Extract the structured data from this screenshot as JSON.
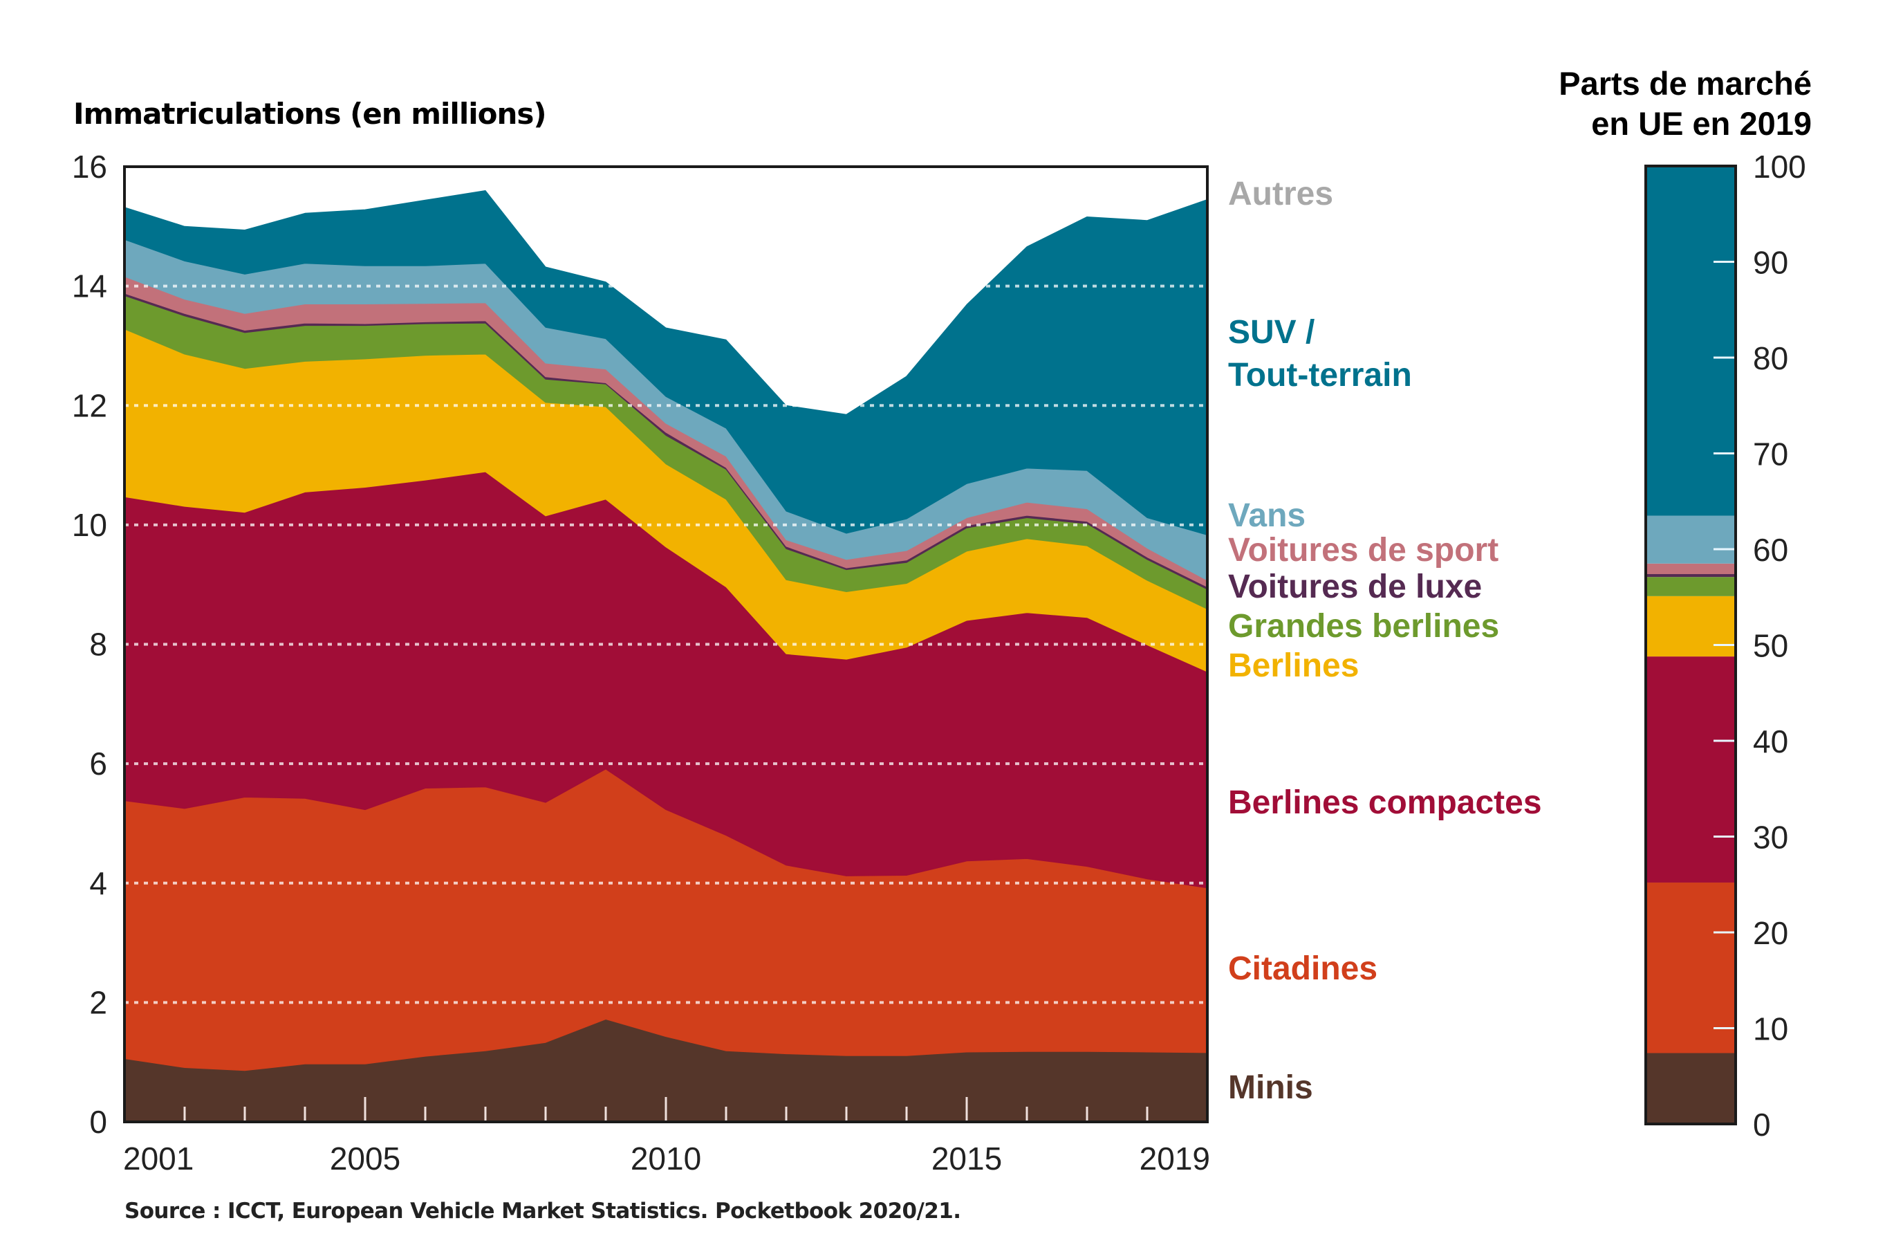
{
  "chart_data": {
    "type": "area",
    "stacked": true,
    "title": "",
    "ylabel": "Immatriculations (en millions)",
    "xlabel": "",
    "ylim": [
      0,
      16
    ],
    "yticks": [
      0,
      2,
      4,
      6,
      8,
      10,
      12,
      14,
      16
    ],
    "xlim": [
      2001,
      2019
    ],
    "x": [
      2001,
      2002,
      2003,
      2004,
      2005,
      2006,
      2007,
      2008,
      2009,
      2010,
      2011,
      2012,
      2013,
      2014,
      2015,
      2016,
      2017,
      2018,
      2019
    ],
    "xtick_labels": [
      "2001",
      "2005",
      "2010",
      "2015",
      "2019"
    ],
    "grid": "horizontal dotted",
    "legend_placement": "right (labels next to layers)",
    "series": [
      {
        "name": "Minis",
        "color": "#55362a",
        "values": [
          1.06,
          0.91,
          0.86,
          0.97,
          0.97,
          1.1,
          1.19,
          1.33,
          1.72,
          1.43,
          1.19,
          1.14,
          1.11,
          1.11,
          1.17,
          1.18,
          1.18,
          1.17,
          1.16
        ]
      },
      {
        "name": "Citadines",
        "color": "#d13f1b",
        "values": [
          4.32,
          4.34,
          4.58,
          4.45,
          4.26,
          4.49,
          4.42,
          4.02,
          4.19,
          3.8,
          3.61,
          3.16,
          3.01,
          3.02,
          3.2,
          3.23,
          3.1,
          2.9,
          2.76
        ]
      },
      {
        "name": "Berlines compactes",
        "color": "#a10d37",
        "values": [
          5.09,
          5.06,
          4.77,
          5.13,
          5.4,
          5.16,
          5.28,
          4.8,
          4.52,
          4.4,
          4.16,
          3.54,
          3.63,
          3.82,
          4.03,
          4.12,
          4.17,
          3.92,
          3.62
        ]
      },
      {
        "name": "Berlines",
        "color": "#f2b200",
        "values": [
          2.81,
          2.55,
          2.41,
          2.19,
          2.15,
          2.09,
          1.97,
          1.9,
          1.55,
          1.39,
          1.47,
          1.24,
          1.13,
          1.07,
          1.16,
          1.24,
          1.2,
          1.08,
          1.05
        ]
      },
      {
        "name": "Grandes berlines",
        "color": "#6d9a2d",
        "values": [
          0.56,
          0.64,
          0.6,
          0.6,
          0.56,
          0.53,
          0.52,
          0.39,
          0.38,
          0.48,
          0.5,
          0.52,
          0.37,
          0.35,
          0.39,
          0.35,
          0.37,
          0.35,
          0.33
        ]
      },
      {
        "name": "Voitures de luxe",
        "color": "#552a52",
        "values": [
          0.04,
          0.04,
          0.04,
          0.04,
          0.03,
          0.03,
          0.04,
          0.04,
          0.02,
          0.05,
          0.03,
          0.04,
          0.03,
          0.04,
          0.04,
          0.04,
          0.04,
          0.04,
          0.04
        ]
      },
      {
        "name": "Voitures de sport",
        "color": "#c2717a",
        "values": [
          0.28,
          0.24,
          0.28,
          0.32,
          0.33,
          0.31,
          0.3,
          0.23,
          0.23,
          0.15,
          0.19,
          0.11,
          0.14,
          0.16,
          0.13,
          0.22,
          0.21,
          0.15,
          0.11
        ]
      },
      {
        "name": "Vans",
        "color": "#6ea8bd",
        "values": [
          0.62,
          0.64,
          0.66,
          0.68,
          0.64,
          0.63,
          0.66,
          0.6,
          0.51,
          0.45,
          0.47,
          0.48,
          0.44,
          0.53,
          0.57,
          0.57,
          0.64,
          0.51,
          0.76
        ]
      },
      {
        "name": "SUV / Tout-terrain",
        "color": "#00728d",
        "values": [
          0.54,
          0.58,
          0.74,
          0.84,
          0.94,
          1.1,
          1.22,
          1.01,
          0.95,
          1.15,
          1.48,
          1.77,
          1.99,
          2.39,
          3.0,
          3.71,
          4.25,
          4.98,
          5.62
        ]
      }
    ],
    "market_share_2019": {
      "title": "Parts de marché en UE en 2019",
      "ylim": [
        0,
        100
      ],
      "yticks": [
        0,
        10,
        20,
        30,
        40,
        50,
        60,
        70,
        80,
        90,
        100
      ],
      "unit": "%",
      "segments": [
        {
          "name": "Minis",
          "value": 7.4
        },
        {
          "name": "Citadines",
          "value": 17.8
        },
        {
          "name": "Berlines compactes",
          "value": 23.6
        },
        {
          "name": "Berlines",
          "value": 6.3
        },
        {
          "name": "Grandes berlines",
          "value": 2.0
        },
        {
          "name": "Voitures de luxe",
          "value": 0.3
        },
        {
          "name": "Voitures de sport",
          "value": 1.1
        },
        {
          "name": "Vans",
          "value": 5.0
        },
        {
          "name": "SUV / Tout-terrain",
          "value": 36.5
        }
      ]
    },
    "source": "Source : ICCT, European Vehicle Market Statistics. Pocketbook 2020/21."
  },
  "texts": {
    "y_title": "Immatriculations (en millions)",
    "share_title_line1": "Parts de marché",
    "share_title_line2": "en UE en 2019",
    "source": "Source : ICCT, European Vehicle Market Statistics. Pocketbook 2020/21."
  },
  "legend": [
    {
      "key": "autres",
      "label": "Autres",
      "color": "#a8a8a8"
    },
    {
      "key": "suv1",
      "label": "SUV /",
      "color": "#00728d"
    },
    {
      "key": "suv2",
      "label": "Tout-terrain",
      "color": "#00728d"
    },
    {
      "key": "vans",
      "label": "Vans",
      "color": "#6ea8bd"
    },
    {
      "key": "sport",
      "label": "Voitures de sport",
      "color": "#c2717a"
    },
    {
      "key": "luxe",
      "label": "Voitures de luxe",
      "color": "#552a52"
    },
    {
      "key": "grandes",
      "label": "Grandes berlines",
      "color": "#6d9a2d"
    },
    {
      "key": "berlines",
      "label": "Berlines",
      "color": "#f2b200"
    },
    {
      "key": "compactes",
      "label": "Berlines compactes",
      "color": "#a10d37"
    },
    {
      "key": "citadines",
      "label": "Citadines",
      "color": "#d13f1b"
    },
    {
      "key": "minis",
      "label": "Minis",
      "color": "#55362a"
    }
  ]
}
